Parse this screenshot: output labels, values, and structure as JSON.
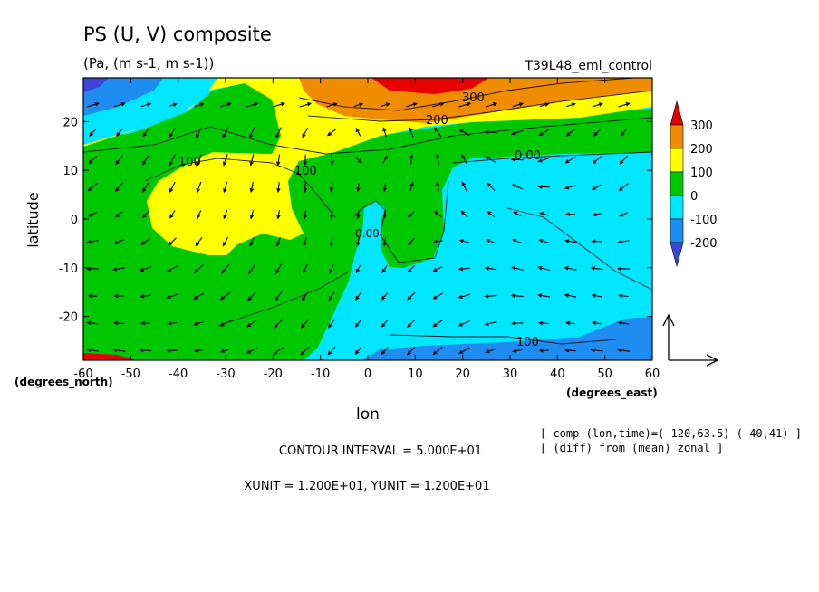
{
  "chart_data": {
    "type": "heatmap",
    "title": "PS (U, V) composite",
    "subtitle": "(Pa, (m s-1, m s-1))",
    "experiment": "T39L48_eml_control",
    "xlabel": "lon",
    "ylabel": "latitude",
    "x_unit_label": "(degrees_east)",
    "y_unit_label": "(degrees_north)",
    "xlim": [
      -60,
      60
    ],
    "ylim": [
      -29,
      29
    ],
    "x_ticks": [
      "-60",
      "-50",
      "-40",
      "-30",
      "-20",
      "-10",
      "0",
      "10",
      "20",
      "30",
      "40",
      "50",
      "60"
    ],
    "y_ticks": [
      "20",
      "10",
      "0",
      "-10",
      "-20"
    ],
    "colorbar": {
      "labels": [
        "300",
        "200",
        "100",
        "0",
        "-100",
        "-200"
      ],
      "levels": [
        300,
        200,
        100,
        0,
        -100,
        -200
      ],
      "colors": [
        "#e60000",
        "#f08c00",
        "#ffff00",
        "#00c800",
        "#00e6ff",
        "#1e8cf0",
        "#3c46dc"
      ]
    },
    "contour_labels": [
      "300",
      "200",
      "100",
      "100",
      "0.00",
      "0.00",
      "100"
    ],
    "contour_interval_text": "CONTOUR INTERVAL = 5.000E+01",
    "unit_vector_text": "XUNIT = 1.200E+01, YUNIT = 1.200E+01",
    "notes": [
      "[ comp (lon,time)=(-120,63.5)-(-40,41) ]",
      "[ (diff) from (mean) zonal ]"
    ]
  }
}
